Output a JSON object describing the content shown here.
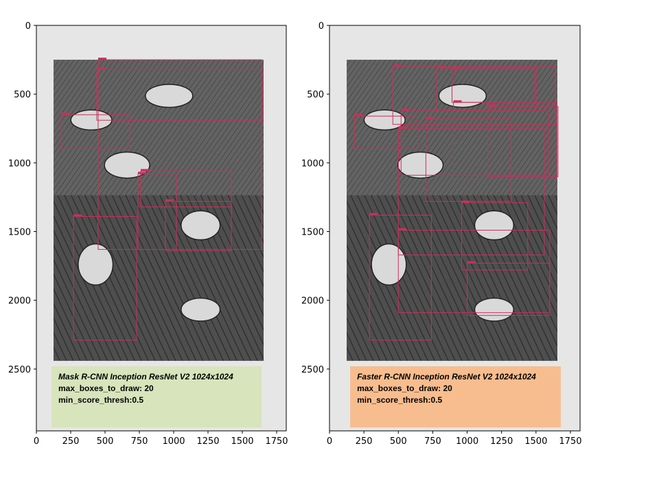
{
  "chart_data": [
    {
      "type": "image",
      "xlim": [
        0,
        1820
      ],
      "ylim": [
        2950,
        0
      ],
      "x_ticks": [
        0,
        250,
        500,
        750,
        1000,
        1250,
        1500,
        1750
      ],
      "y_ticks": [
        0,
        500,
        1000,
        1500,
        2000,
        2500
      ],
      "x_tick_labels": [
        "0",
        "250",
        "500",
        "750",
        "1000",
        "1250",
        "1500",
        "1750"
      ],
      "y_tick_labels": [
        "0",
        "500",
        "1000",
        "1500",
        "2000",
        "2500"
      ],
      "box_color": "#c8305a",
      "boxes": [
        {
          "x0": 450,
          "y0": 250,
          "x1": 1640,
          "y1": 1630
        },
        {
          "x0": 440,
          "y0": 320,
          "x1": 1650,
          "y1": 690
        },
        {
          "x0": 180,
          "y0": 650,
          "x1": 680,
          "y1": 900
        },
        {
          "x0": 760,
          "y0": 1060,
          "x1": 1420,
          "y1": 1320
        },
        {
          "x0": 940,
          "y0": 1280,
          "x1": 1420,
          "y1": 1640
        },
        {
          "x0": 270,
          "y0": 1390,
          "x1": 730,
          "y1": 2290
        },
        {
          "x0": 740,
          "y0": 1080,
          "x1": 1020,
          "y1": 1630
        }
      ],
      "annotation": {
        "background": "#d8e4bc",
        "lines": [
          "Mask R-CNN Inception ResNet V2 1024x1024",
          "max_boxes_to_draw: 20",
          "min_score_thresh:0.5"
        ]
      }
    },
    {
      "type": "image",
      "xlim": [
        0,
        1820
      ],
      "ylim": [
        2950,
        0
      ],
      "x_ticks": [
        0,
        250,
        500,
        750,
        1000,
        1250,
        1500,
        1750
      ],
      "y_ticks": [
        0,
        500,
        1000,
        1500,
        2000,
        2500
      ],
      "x_tick_labels": [
        "0",
        "250",
        "500",
        "750",
        "1000",
        "1250",
        "1500",
        "1750"
      ],
      "y_tick_labels": [
        "0",
        "500",
        "1000",
        "1500",
        "2000",
        "2500"
      ],
      "box_color": "#c8305a",
      "boxes": [
        {
          "x0": 460,
          "y0": 300,
          "x1": 1640,
          "y1": 720
        },
        {
          "x0": 780,
          "y0": 310,
          "x1": 1500,
          "y1": 620
        },
        {
          "x0": 890,
          "y0": 320,
          "x1": 1490,
          "y1": 560
        },
        {
          "x0": 180,
          "y0": 660,
          "x1": 640,
          "y1": 900
        },
        {
          "x0": 520,
          "y0": 620,
          "x1": 1590,
          "y1": 1090
        },
        {
          "x0": 500,
          "y0": 750,
          "x1": 1560,
          "y1": 1670
        },
        {
          "x0": 700,
          "y0": 680,
          "x1": 1320,
          "y1": 1280
        },
        {
          "x0": 900,
          "y0": 560,
          "x1": 1650,
          "y1": 1120
        },
        {
          "x0": 1150,
          "y0": 590,
          "x1": 1660,
          "y1": 1100
        },
        {
          "x0": 960,
          "y0": 1290,
          "x1": 1440,
          "y1": 1780
        },
        {
          "x0": 1000,
          "y0": 1730,
          "x1": 1600,
          "y1": 2110
        },
        {
          "x0": 290,
          "y0": 1380,
          "x1": 740,
          "y1": 2290
        },
        {
          "x0": 500,
          "y0": 1490,
          "x1": 1600,
          "y1": 2090
        }
      ],
      "annotation": {
        "background": "#f8bd8f",
        "lines": [
          "Faster R-CNN Inception ResNet V2 1024x1024",
          "max_boxes_to_draw: 20",
          "min_score_thresh:0.5"
        ]
      }
    }
  ]
}
